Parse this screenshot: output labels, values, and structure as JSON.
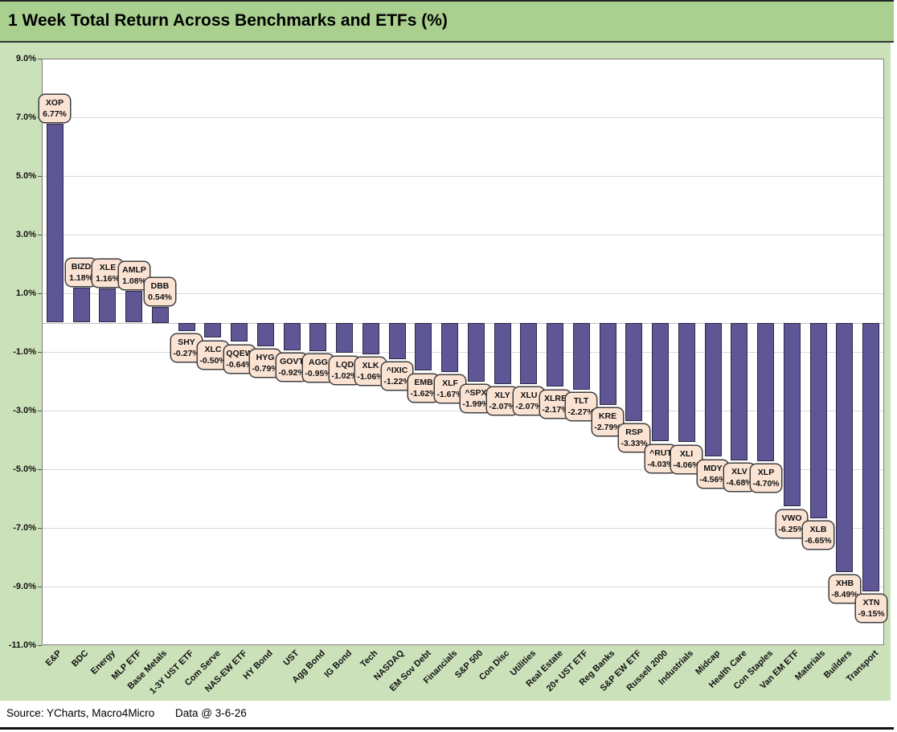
{
  "title": "1 Week Total Return Across Benchmarks and ETFs (%)",
  "footer": {
    "source": "Source: YCharts, Macro4Micro",
    "data_date": "Data @ 3-6-26"
  },
  "colors": {
    "title_band": "#a9d08e",
    "background": "#cbe1ba",
    "plot_background": "#ffffff",
    "plot_border": "#7f7f7f",
    "gridline": "#d9d9d9",
    "zero_axis": "#bfbfbf",
    "bar_fill": "#5e5695",
    "bar_border": "#2d2a45",
    "label_box_fill": "#fbe3d4",
    "label_box_border": "#3f3f3f",
    "text": "#111111"
  },
  "chart_data": {
    "type": "bar",
    "title": "1 Week Total Return Across Benchmarks and ETFs (%)",
    "xlabel": "",
    "ylabel": "",
    "ylim": [
      -11,
      9
    ],
    "ytick_interval": 2,
    "ytick_labels": [
      "9.0%",
      "7.0%",
      "5.0%",
      "3.0%",
      "1.0%",
      "-1.0%",
      "-3.0%",
      "-5.0%",
      "-7.0%",
      "-9.0%",
      "-11.0%"
    ],
    "grid": true,
    "legend": false,
    "categories": [
      "E&P",
      "BDC",
      "Energy",
      "MLP ETF",
      "Base Metals",
      "1-3Y UST ETF",
      "Com Serve",
      "NAS-EW ETF",
      "HY Bond",
      "UST",
      "Agg Bond",
      "IG Bond",
      "Tech",
      "NASDAQ",
      "EM Sov Debt",
      "Financials",
      "S&P 500",
      "Con Disc",
      "Utilities",
      "Real Estate",
      "20+ UST ETF",
      "Reg Banks",
      "S&P EW ETF",
      "Russell 2000",
      "Industrials",
      "Midcap",
      "Health Care",
      "Con Staples",
      "Van EM ETF",
      "Materials",
      "Builders",
      "Transport"
    ],
    "tickers": [
      "XOP",
      "BIZD",
      "XLE",
      "AMLP",
      "DBB",
      "SHY",
      "XLC",
      "QQEW",
      "HYG",
      "GOVT",
      "AGG",
      "LQD",
      "XLK",
      "^IXIC",
      "EMB",
      "XLF",
      "^SPX",
      "XLY",
      "XLU",
      "XLRE",
      "TLT",
      "KRE",
      "RSP",
      "^RUT",
      "XLI",
      "MDY",
      "XLV",
      "XLP",
      "VWO",
      "XLB",
      "XHB",
      "XTN"
    ],
    "values": [
      6.77,
      1.18,
      1.16,
      1.08,
      0.54,
      -0.27,
      -0.5,
      -0.64,
      -0.79,
      -0.92,
      -0.95,
      -1.02,
      -1.06,
      -1.22,
      -1.62,
      -1.67,
      -1.99,
      -2.07,
      -2.07,
      -2.17,
      -2.27,
      -2.79,
      -3.33,
      -4.03,
      -4.06,
      -4.56,
      -4.68,
      -4.7,
      -6.25,
      -6.65,
      -8.49,
      -9.15
    ]
  }
}
